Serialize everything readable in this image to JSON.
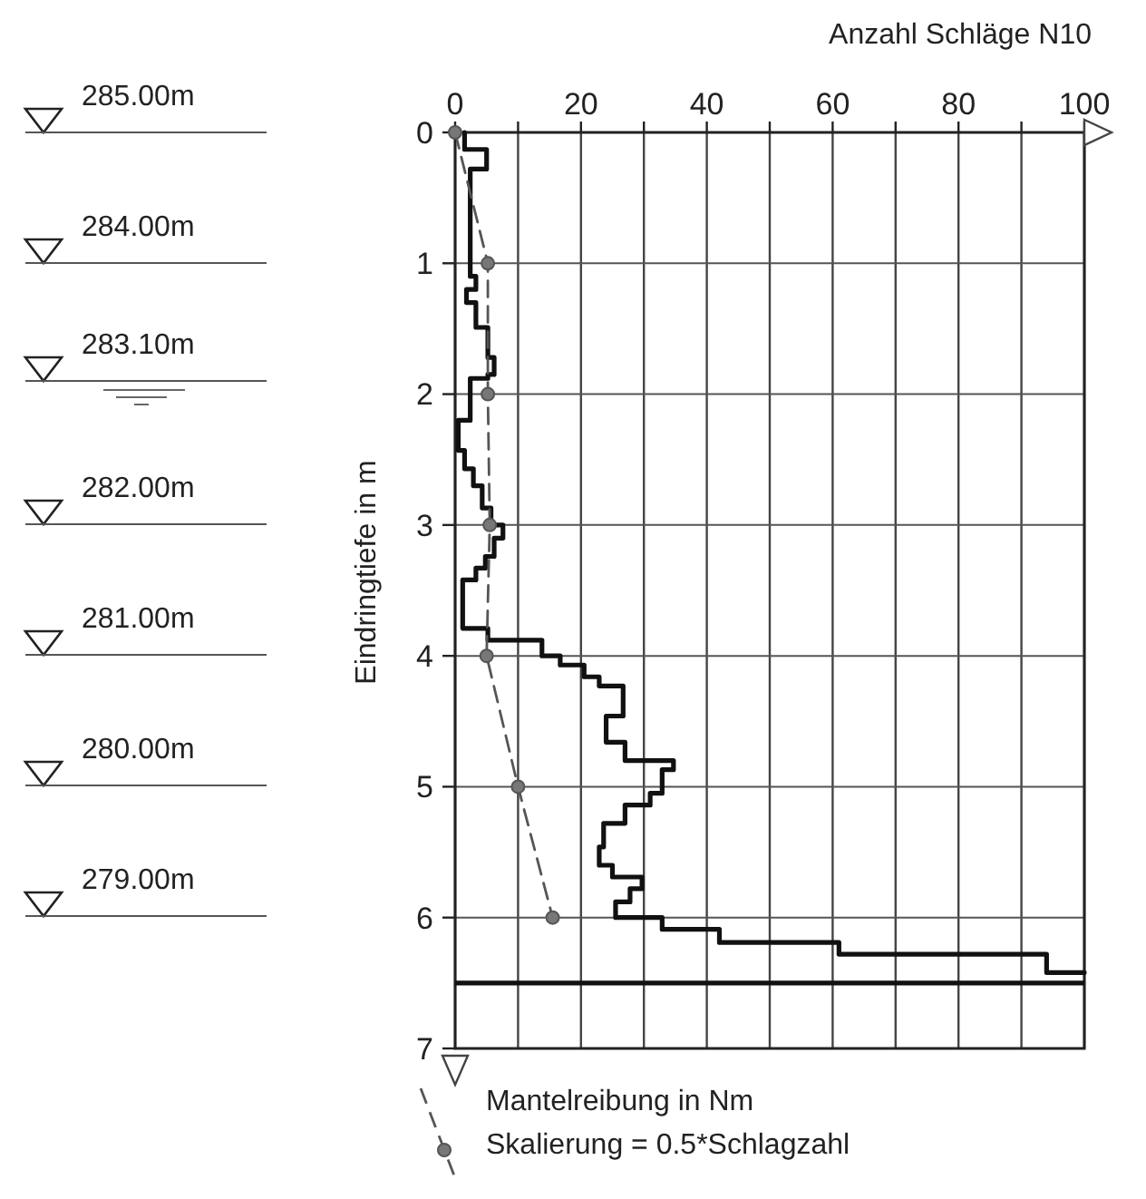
{
  "chart_data": {
    "type": "line",
    "xlabel": "Anzahl Schläge N10",
    "ylabel": "Eindringtiefe in m",
    "xlim": [
      0,
      100
    ],
    "ylim": [
      7,
      0
    ],
    "xticks": [
      0,
      {
        "value": 10,
        "label": null
      },
      20,
      {
        "value": 30,
        "label": null
      },
      40,
      {
        "value": 50,
        "label": null
      },
      60,
      {
        "value": 70,
        "label": null
      },
      80,
      {
        "value": 90,
        "label": null
      },
      100
    ],
    "yticks": [
      0,
      1,
      2,
      3,
      4,
      5,
      6,
      7
    ],
    "grid": true,
    "legend": "bottom",
    "series": [
      {
        "color": "#111111",
        "line_style": "solid",
        "marker": "none",
        "x": [
          1.5,
          1.5,
          5,
          5,
          2.4,
          2.4,
          3.3,
          3.3,
          1.8,
          1.8,
          3.3,
          3.3,
          5.2,
          5.2,
          6.2,
          6.2,
          5.2,
          5.2,
          2.4,
          2.4,
          0.5,
          0.5,
          1.5,
          1.5,
          2.9,
          2.9,
          4.3,
          4.3,
          5.7,
          5.7,
          7.6,
          7.6,
          6.2,
          6.2,
          4.8,
          4.8,
          3.3,
          3.3,
          1.2,
          1.2,
          5.2,
          5.2,
          13.8,
          13.8,
          16.7,
          16.7,
          20.5,
          20.5,
          22.9,
          22.9,
          26.7,
          26.7,
          24,
          24,
          27,
          27,
          34.7,
          34.7,
          32.9,
          32.9,
          31,
          31,
          27,
          27,
          23.6,
          23.6,
          22.9,
          22.9,
          25,
          25,
          29.7,
          29.7,
          27.8,
          27.8,
          25.5,
          25.5,
          32.9,
          32.9,
          42,
          42,
          61,
          61,
          94,
          94,
          100
        ],
        "values": [
          0,
          0.13,
          0.13,
          0.28,
          0.28,
          1.1,
          1.1,
          1.2,
          1.2,
          1.3,
          1.3,
          1.49,
          1.49,
          1.72,
          1.72,
          1.85,
          1.85,
          1.88,
          1.88,
          2.2,
          2.2,
          2.43,
          2.43,
          2.57,
          2.57,
          2.7,
          2.7,
          2.87,
          2.87,
          3.0,
          3.0,
          3.1,
          3.1,
          3.24,
          3.24,
          3.33,
          3.33,
          3.42,
          3.42,
          3.79,
          3.79,
          3.88,
          3.88,
          4.0,
          4.0,
          4.07,
          4.07,
          4.16,
          4.16,
          4.23,
          4.23,
          4.46,
          4.46,
          4.66,
          4.66,
          4.8,
          4.8,
          4.87,
          4.87,
          5.05,
          5.05,
          5.14,
          5.14,
          5.28,
          5.28,
          5.46,
          5.46,
          5.6,
          5.6,
          5.69,
          5.69,
          5.78,
          5.78,
          5.88,
          5.88,
          6.0,
          6.0,
          6.09,
          6.09,
          6.19,
          6.19,
          6.28,
          6.28,
          6.42,
          6.42
        ]
      },
      {
        "name": "Mantelreibung in Nm",
        "color": "#555555",
        "line_style": "dashed",
        "marker": "circle",
        "x": [
          0,
          5.2,
          5.2,
          5.5,
          5,
          10,
          15.5
        ],
        "values": [
          0,
          1,
          2,
          3,
          4,
          5,
          6
        ]
      }
    ],
    "ref_lines": [
      {
        "axis": "y",
        "value": 6.5,
        "color": "#111111"
      }
    ],
    "annotations": [
      "285.00m",
      "284.00m",
      "283.10m",
      "282.00m",
      "281.00m",
      "280.00m",
      "279.00m",
      "Skalierung = 0.5*Schlagzahl"
    ]
  }
}
